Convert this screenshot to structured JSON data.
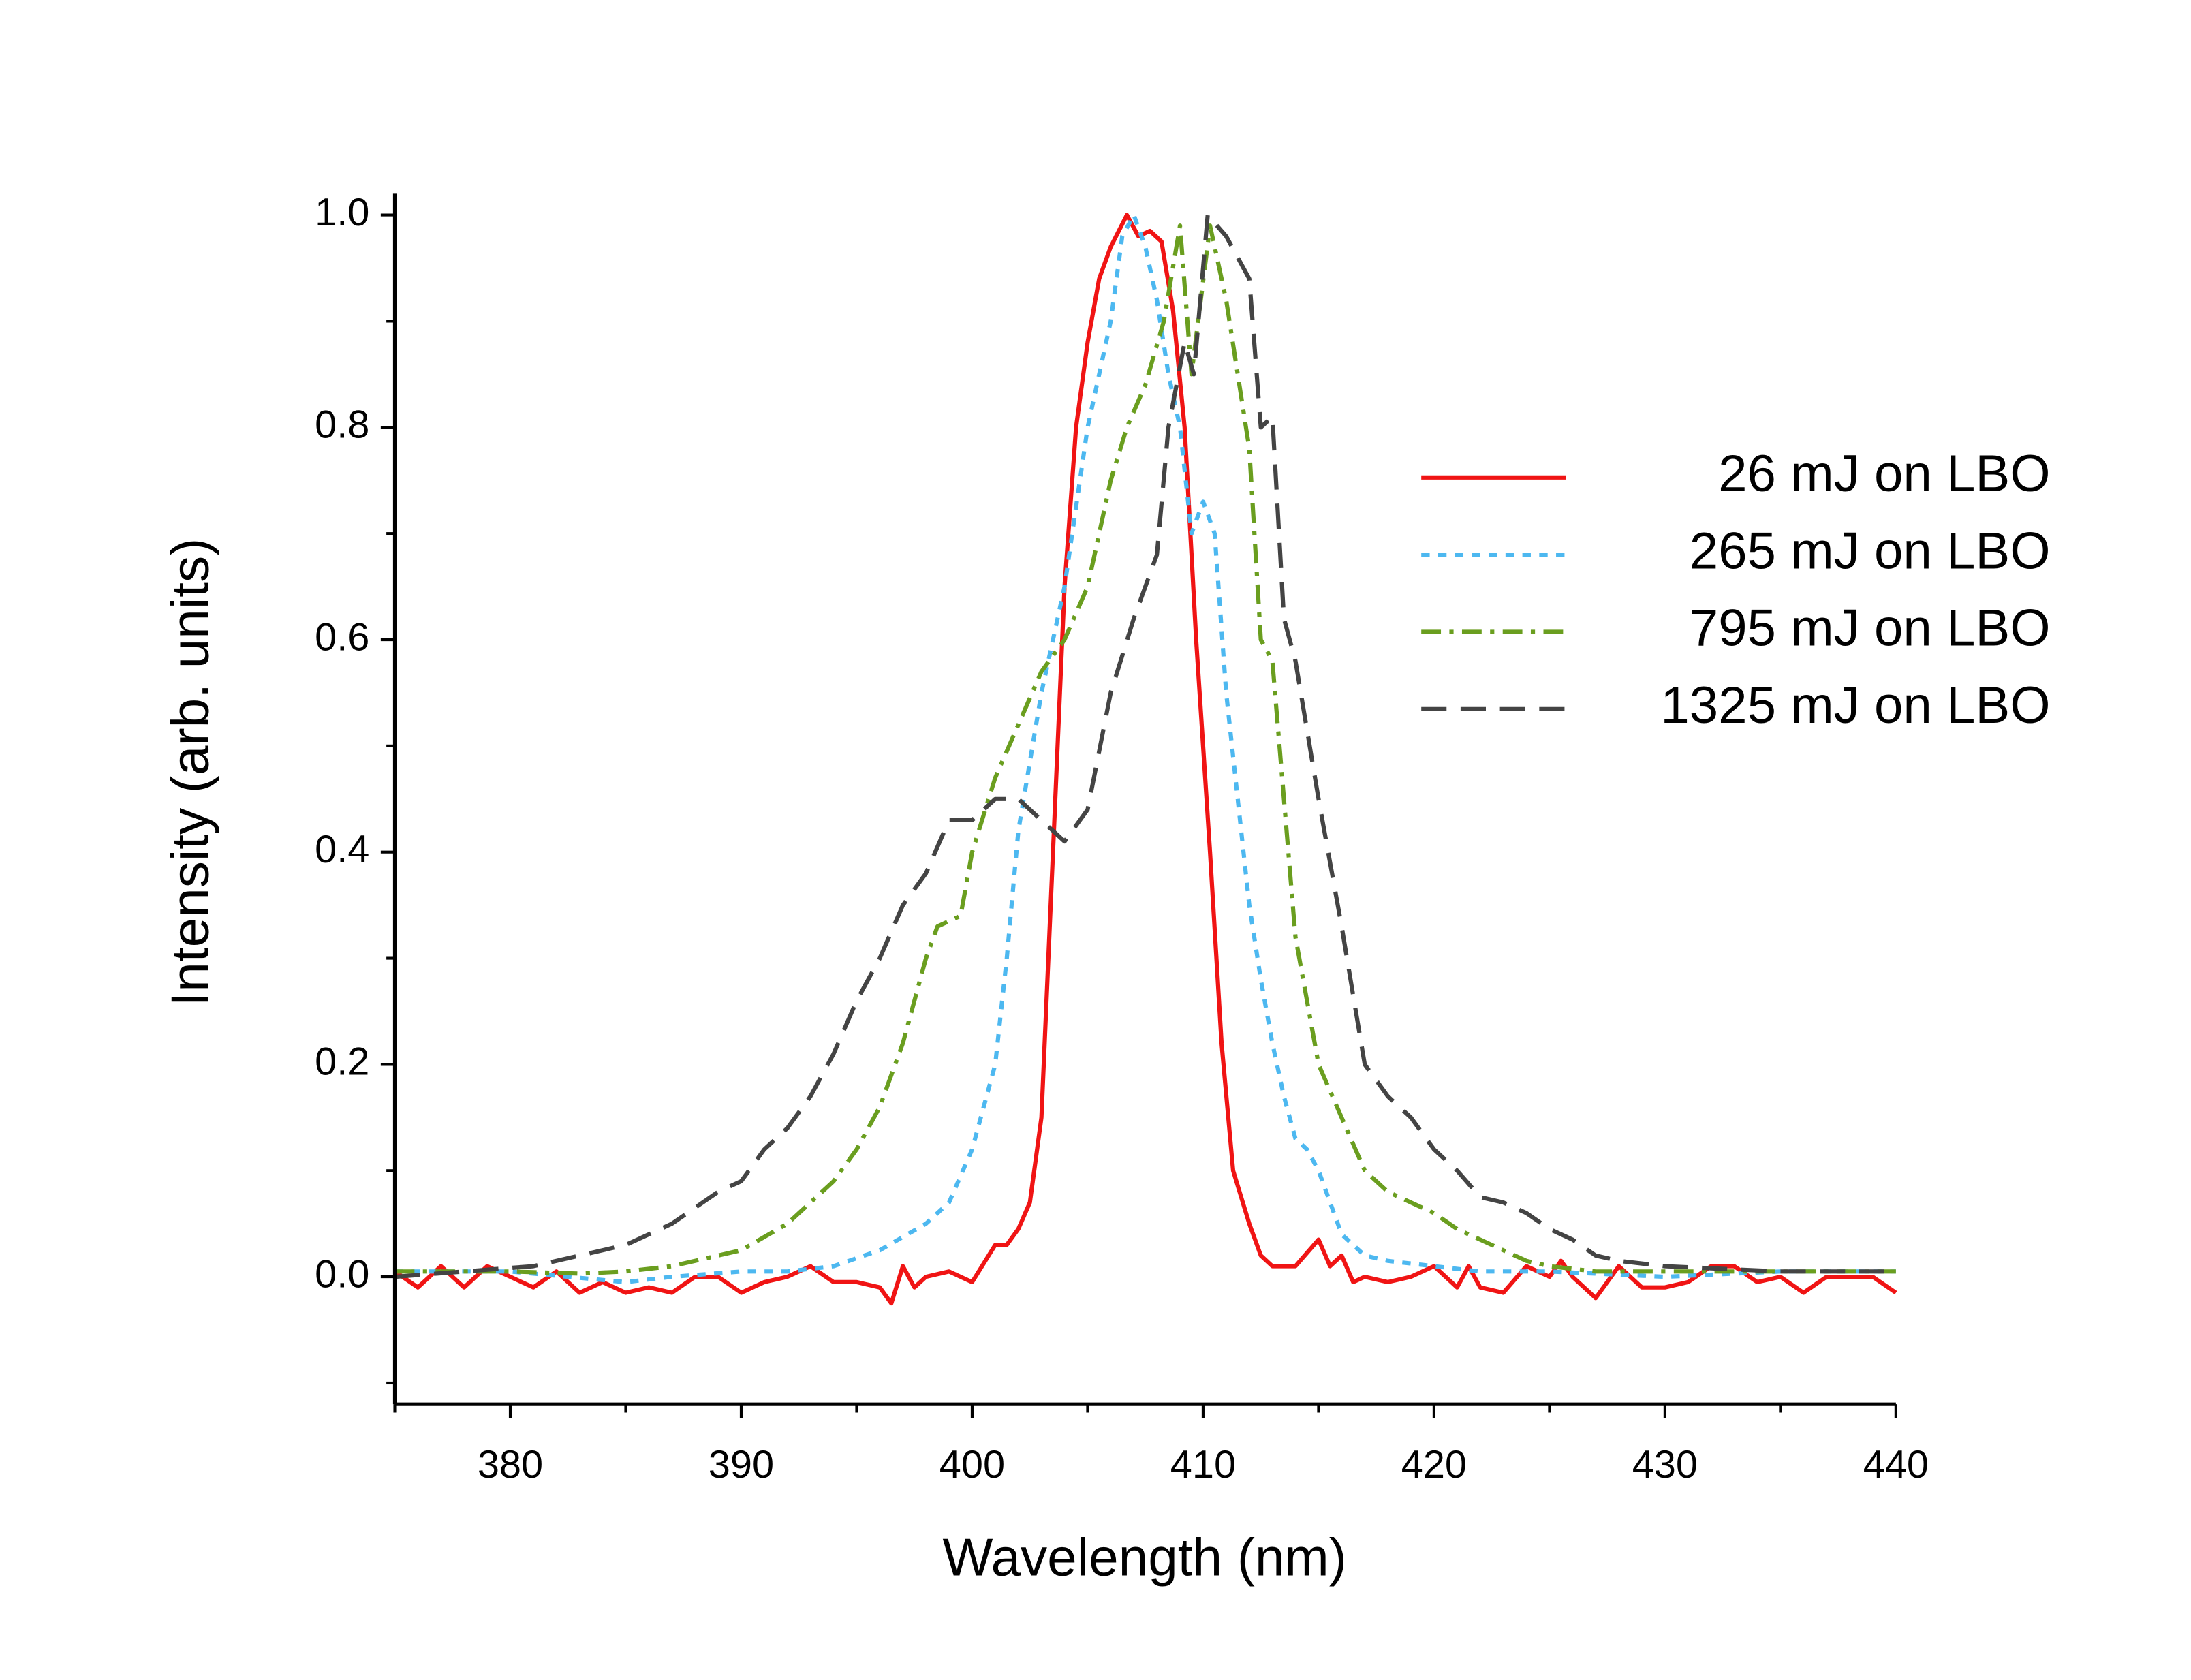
{
  "chart_data": {
    "type": "line",
    "xlabel": "Wavelength (nm)",
    "ylabel": "Intensity (arb. units)",
    "xlim": [
      375,
      440
    ],
    "xticks": [
      380,
      390,
      400,
      410,
      420,
      430,
      440
    ],
    "xminor": [
      375,
      385,
      395,
      405,
      415,
      425,
      435
    ],
    "ylim": [
      -0.12,
      1.02
    ],
    "yticks": [
      {
        "value": 0,
        "label": "0.0"
      },
      0.2,
      0.4,
      0.6,
      0.8,
      {
        "value": 1,
        "label": "1.0"
      }
    ],
    "yminor": [
      -0.1,
      0.1,
      0.3,
      0.5,
      0.7,
      0.9
    ],
    "legend": "right",
    "series": [
      {
        "name": "26 mJ on LBO",
        "color": "#f01414",
        "dash": "none",
        "x": [
          375,
          376,
          377,
          378,
          379,
          380,
          381,
          382,
          383,
          384,
          385,
          386,
          387,
          388,
          389,
          390,
          391,
          392,
          393,
          394,
          395,
          396,
          396.5,
          397,
          397.5,
          398,
          399,
          400,
          401,
          401.5,
          402,
          402.5,
          403,
          403.5,
          404,
          404.5,
          405,
          405.5,
          406,
          406.7,
          407.2,
          407.7,
          408.2,
          408.7,
          409.2,
          409.7,
          410.3,
          410.8,
          411.3,
          412,
          412.5,
          413,
          414,
          415,
          415.5,
          416,
          416.5,
          417,
          418,
          419,
          420,
          421,
          421.5,
          422,
          423,
          424,
          425,
          425.5,
          426,
          427,
          428,
          429,
          430,
          431,
          432,
          433,
          434,
          435,
          436,
          437,
          438,
          439,
          440
        ],
        "values": [
          0.005,
          -0.01,
          0.01,
          -0.01,
          0.01,
          0,
          -0.01,
          0.005,
          -0.015,
          -0.005,
          -0.015,
          -0.01,
          -0.015,
          0,
          0,
          -0.015,
          -0.005,
          0,
          0.01,
          -0.005,
          -0.005,
          -0.01,
          -0.025,
          0.01,
          -0.01,
          0,
          0.005,
          -0.005,
          0.03,
          0.03,
          0.045,
          0.07,
          0.15,
          0.4,
          0.65,
          0.8,
          0.88,
          0.94,
          0.97,
          1.0,
          0.98,
          0.985,
          0.975,
          0.91,
          0.8,
          0.6,
          0.4,
          0.22,
          0.1,
          0.05,
          0.02,
          0.01,
          0.01,
          0.035,
          0.01,
          0.02,
          -0.005,
          0,
          -0.005,
          0,
          0.01,
          -0.01,
          0.01,
          -0.01,
          -0.015,
          0.01,
          0,
          0.015,
          0,
          -0.02,
          0.01,
          -0.01,
          -0.01,
          -0.005,
          0.01,
          0.01,
          -0.005,
          0,
          -0.015,
          0,
          0,
          0,
          -0.015
        ]
      },
      {
        "name": "265 mJ on LBO",
        "color": "#4db8f0",
        "dash": "6,6",
        "x": [
          375,
          380,
          385,
          387,
          390,
          392,
          394,
          396,
          398,
          399,
          400,
          401,
          401.5,
          402,
          403,
          404,
          405,
          406,
          406.5,
          407,
          407.5,
          408,
          408.5,
          409,
          409.5,
          410,
          410.5,
          411,
          411.5,
          412,
          412.5,
          413,
          413.5,
          414,
          414.5,
          415,
          416,
          417,
          418,
          420,
          422,
          425,
          430,
          435,
          440
        ],
        "values": [
          0.005,
          0.005,
          -0.005,
          0,
          0.005,
          0.005,
          0.01,
          0.025,
          0.05,
          0.07,
          0.12,
          0.2,
          0.3,
          0.42,
          0.55,
          0.65,
          0.8,
          0.9,
          0.98,
          1.0,
          0.97,
          0.92,
          0.85,
          0.8,
          0.7,
          0.73,
          0.7,
          0.55,
          0.45,
          0.35,
          0.28,
          0.22,
          0.17,
          0.13,
          0.12,
          0.1,
          0.04,
          0.02,
          0.015,
          0.01,
          0.005,
          0.005,
          0,
          0.005,
          0.005
        ]
      },
      {
        "name": "795 mJ on LBO",
        "color": "#6a9e1f",
        "dash": "14,6,3,6",
        "x": [
          375,
          380,
          383,
          385,
          387,
          389,
          390,
          392,
          393,
          394,
          395,
          396,
          397,
          398,
          398.5,
          399.5,
          400,
          401,
          402,
          403,
          404,
          405,
          406,
          406.7,
          407.5,
          408.3,
          409,
          409.5,
          410.3,
          411,
          412,
          412.5,
          413,
          413.5,
          414,
          415,
          416,
          417,
          418,
          419,
          420,
          421,
          422,
          423,
          424,
          425,
          427,
          430,
          435,
          440
        ],
        "values": [
          0.005,
          0.005,
          0.003,
          0.005,
          0.01,
          0.02,
          0.025,
          0.05,
          0.07,
          0.09,
          0.12,
          0.16,
          0.22,
          0.3,
          0.33,
          0.34,
          0.4,
          0.47,
          0.52,
          0.57,
          0.6,
          0.65,
          0.75,
          0.8,
          0.84,
          0.9,
          0.99,
          0.85,
          0.99,
          0.92,
          0.78,
          0.6,
          0.58,
          0.45,
          0.32,
          0.2,
          0.15,
          0.1,
          0.08,
          0.07,
          0.06,
          0.045,
          0.035,
          0.025,
          0.015,
          0.01,
          0.005,
          0.005,
          0.005,
          0.005
        ]
      },
      {
        "name": "1325 mJ on LBO",
        "color": "#444444",
        "dash": "18,10",
        "x": [
          375,
          378,
          381,
          383,
          385,
          386,
          387,
          389,
          390,
          391,
          392,
          393,
          394,
          395,
          396,
          397,
          398,
          399,
          400,
          401,
          402,
          403,
          404,
          405,
          406,
          407,
          408,
          408.5,
          409.2,
          409.6,
          410.2,
          411,
          412,
          412.5,
          413,
          413.5,
          414,
          415,
          416,
          417,
          418,
          419,
          420,
          421,
          422,
          423,
          424,
          425,
          426,
          427,
          428,
          430,
          432,
          435,
          440
        ],
        "values": [
          0,
          0.005,
          0.01,
          0.02,
          0.03,
          0.04,
          0.05,
          0.08,
          0.09,
          0.12,
          0.14,
          0.17,
          0.21,
          0.26,
          0.3,
          0.35,
          0.38,
          0.43,
          0.43,
          0.45,
          0.45,
          0.43,
          0.41,
          0.44,
          0.55,
          0.62,
          0.68,
          0.8,
          0.88,
          0.85,
          1.0,
          0.98,
          0.94,
          0.8,
          0.81,
          0.62,
          0.58,
          0.45,
          0.33,
          0.2,
          0.17,
          0.15,
          0.12,
          0.1,
          0.075,
          0.07,
          0.06,
          0.045,
          0.035,
          0.02,
          0.015,
          0.01,
          0.008,
          0.005,
          0.005
        ]
      }
    ]
  }
}
